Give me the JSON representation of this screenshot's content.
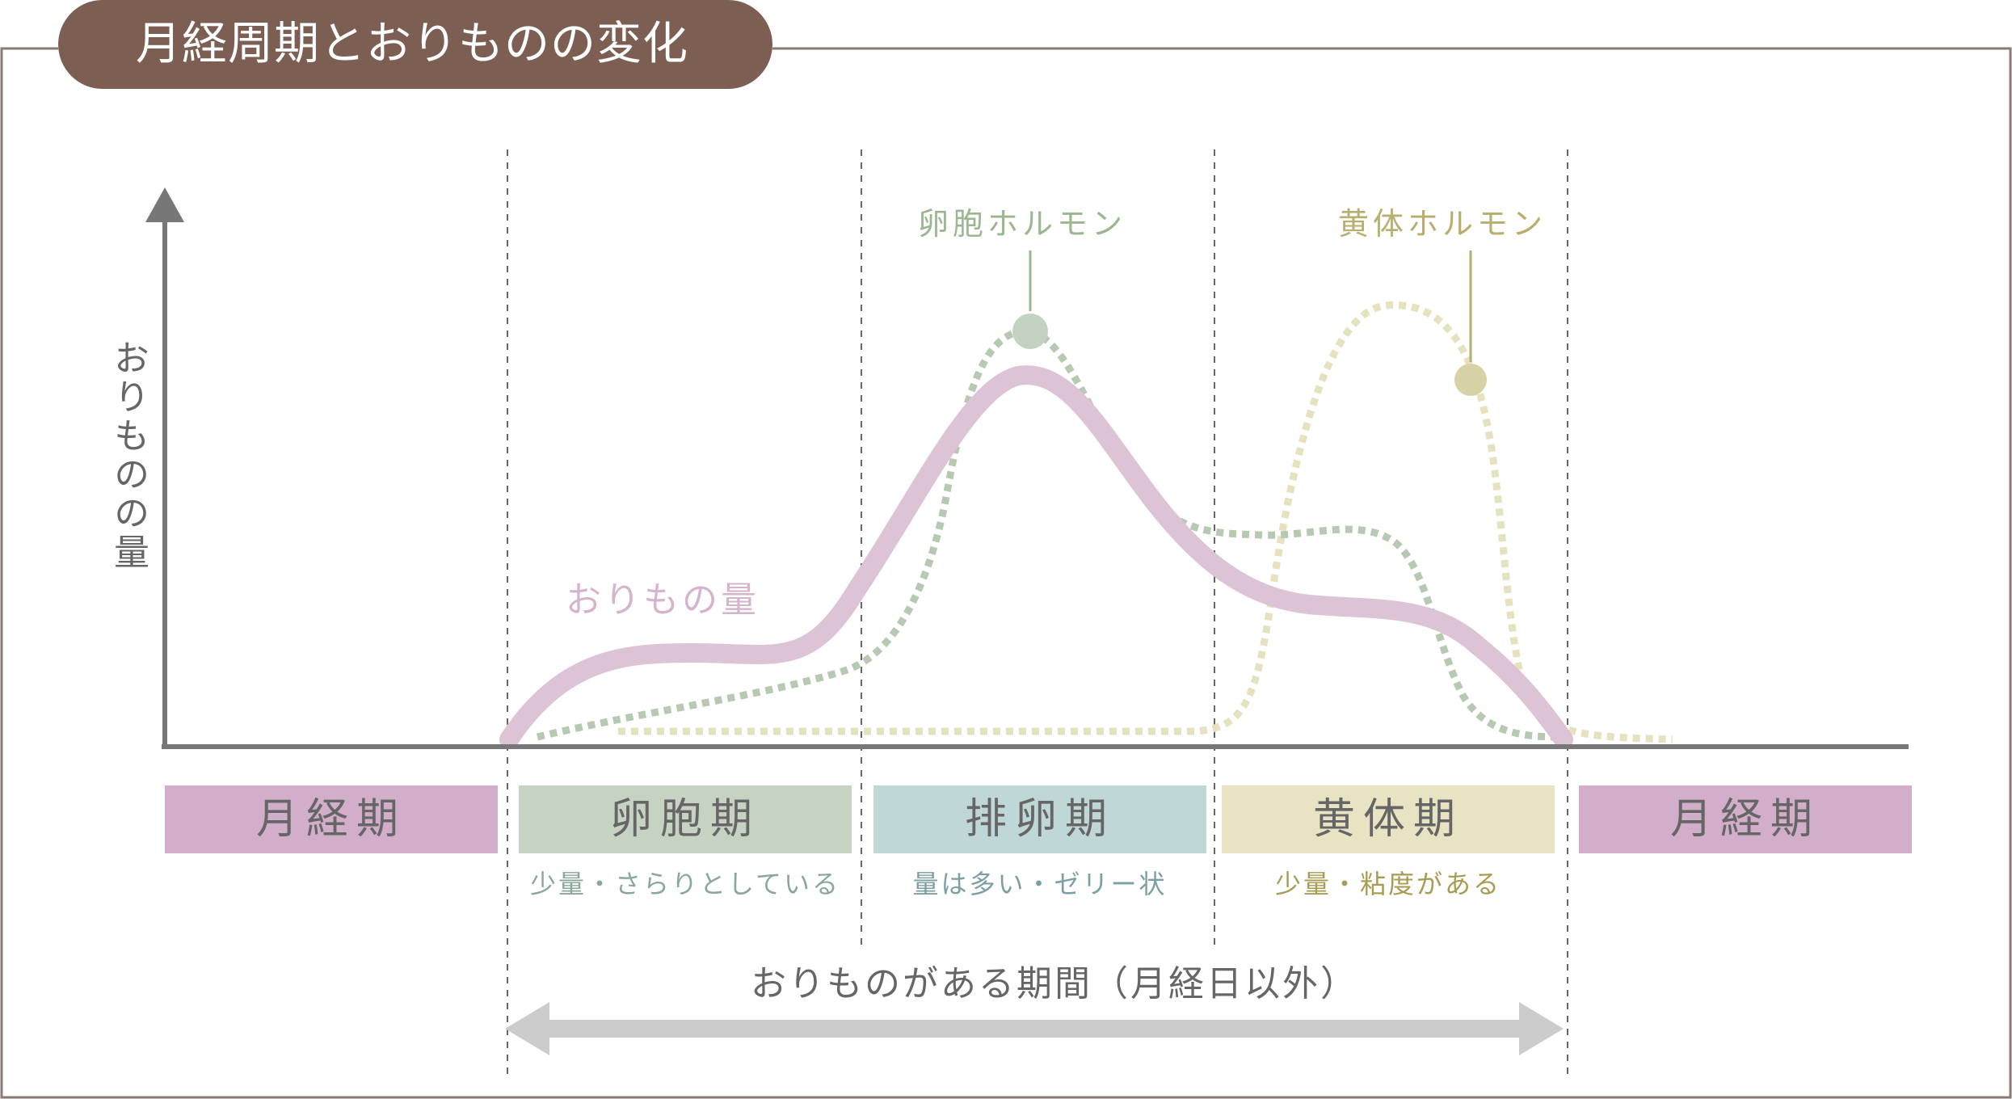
{
  "title": "月経周期とおりものの変化",
  "y_axis_label": "おりものの量",
  "curves": {
    "discharge": {
      "label": "おりもの量",
      "color": "#dcc4d6"
    },
    "follicle_hormone": {
      "label": "卵胞ホルモン",
      "color": "#b7c9b3",
      "label_color": "#9bb790",
      "dot_color": "#c3d2c1"
    },
    "luteal_hormone": {
      "label": "黄体ホルモン",
      "color": "#e6e2bf",
      "label_color": "#b8ae6e",
      "dot_color": "#d6d2a6"
    }
  },
  "phases": [
    {
      "label": "月経期",
      "color": "#d2aecb"
    },
    {
      "label": "卵胞期",
      "color": "#c6d3c3",
      "note": "少量・さらりとしている",
      "note_color": "#8aa79a"
    },
    {
      "label": "排卵期",
      "color": "#bfd8d7",
      "note": "量は多い・ゼリー状",
      "note_color": "#7d9fa3"
    },
    {
      "label": "黄体期",
      "color": "#e7e3c3",
      "note": "少量・粘度がある",
      "note_color": "#a79c52"
    },
    {
      "label": "月経期",
      "color": "#d2aecb"
    }
  ],
  "period_caption": "おりものがある期間（月経日以外）",
  "colors": {
    "title_bg": "#7d5e53",
    "axis": "#777777",
    "frame": "#8a7a74",
    "divider": "#666666",
    "arrow": "#cccccc"
  }
}
